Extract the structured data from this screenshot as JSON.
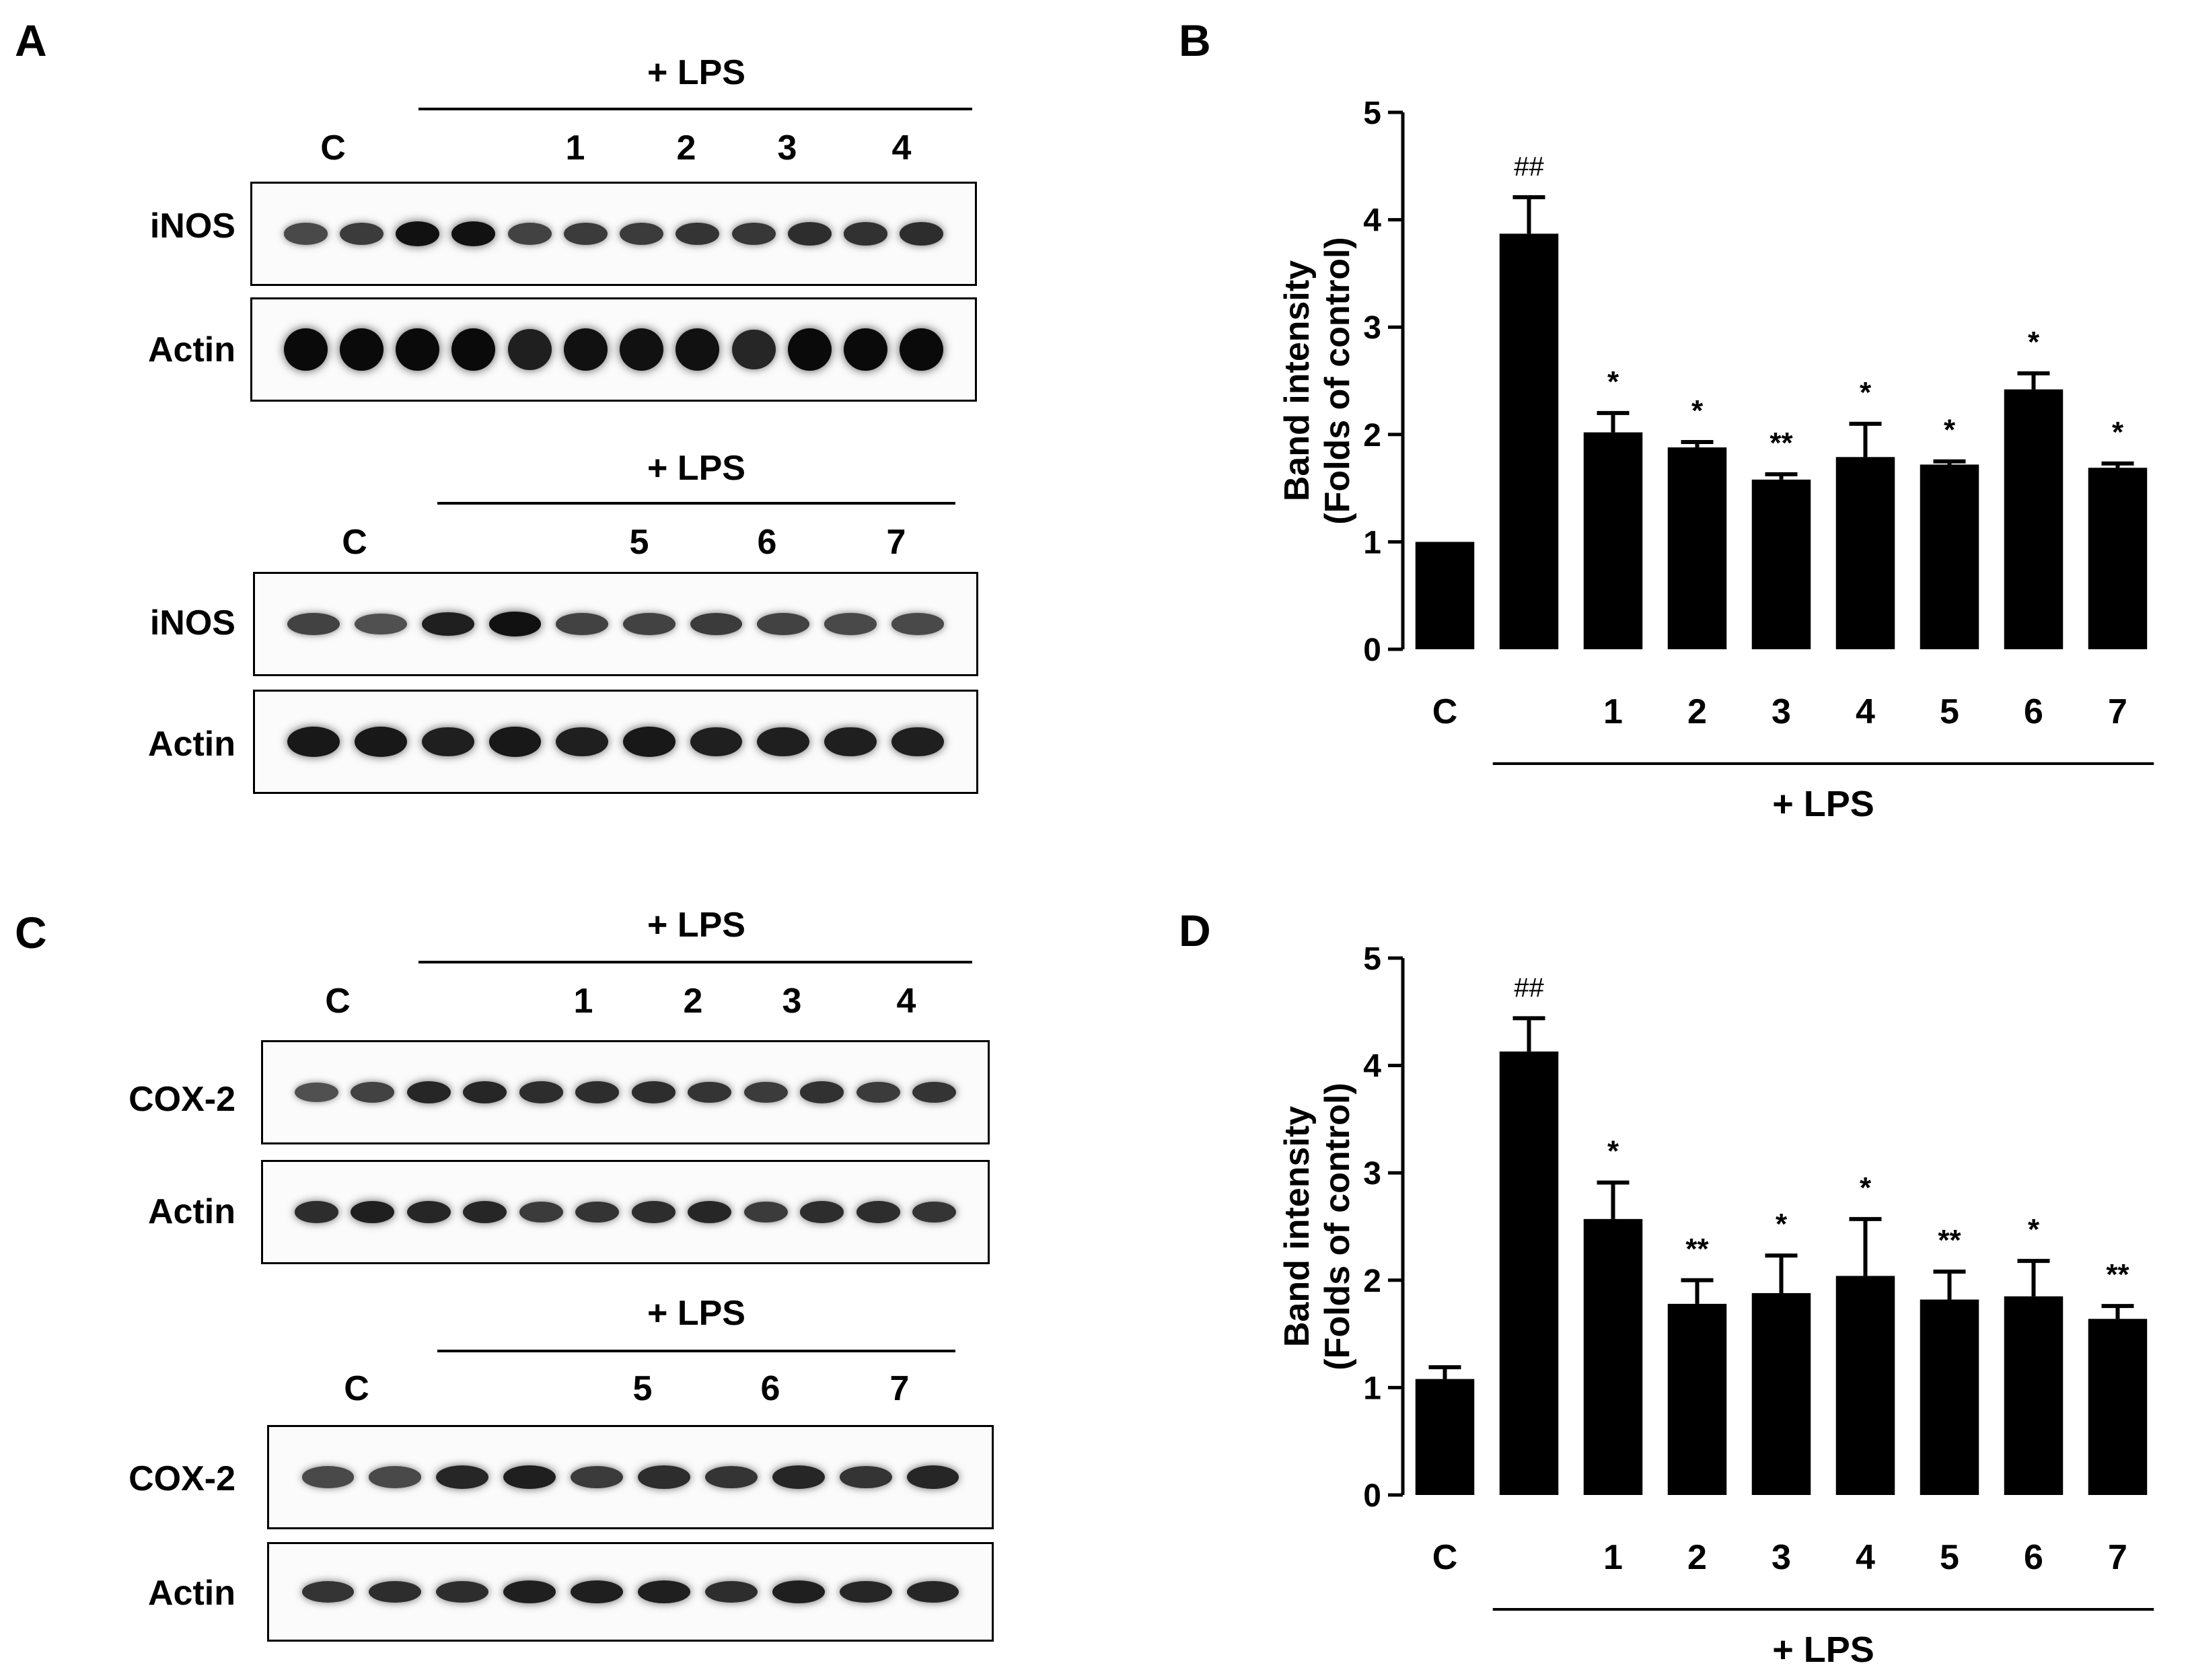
{
  "panels": {
    "A": {
      "letter": "A",
      "blots": [
        {
          "id": "A-top",
          "lps_label": "+ LPS",
          "control_label": "C",
          "lanes": [
            "1",
            "2",
            "3",
            "4"
          ],
          "rows": [
            {
              "label": "iNOS",
              "intensities": [
                0.55,
                0.65,
                0.95,
                0.95,
                0.6,
                0.65,
                0.65,
                0.7,
                0.68,
                0.75,
                0.72,
                0.75
              ]
            },
            {
              "label": "Actin",
              "intensities": [
                1,
                1,
                1,
                1,
                0.85,
                0.95,
                0.95,
                0.95,
                0.8,
                1,
                1,
                1
              ]
            }
          ]
        },
        {
          "id": "A-bottom",
          "lps_label": "+ LPS",
          "control_label": "C",
          "lanes": [
            "5",
            "6",
            "7"
          ],
          "rows": [
            {
              "label": "iNOS",
              "intensities": [
                0.6,
                0.5,
                0.85,
                0.95,
                0.6,
                0.6,
                0.65,
                0.6,
                0.55,
                0.55
              ]
            },
            {
              "label": "Actin",
              "intensities": [
                0.9,
                0.9,
                0.85,
                0.9,
                0.85,
                0.9,
                0.85,
                0.85,
                0.85,
                0.85
              ]
            }
          ]
        }
      ]
    },
    "C": {
      "letter": "C",
      "blots": [
        {
          "id": "C-top",
          "lps_label": "+ LPS",
          "control_label": "C",
          "lanes": [
            "1",
            "2",
            "3",
            "4"
          ],
          "rows": [
            {
              "label": "COX-2",
              "intensities": [
                0.5,
                0.6,
                0.8,
                0.8,
                0.75,
                0.75,
                0.75,
                0.7,
                0.65,
                0.72,
                0.65,
                0.7
              ]
            },
            {
              "label": "Actin",
              "intensities": [
                0.75,
                0.85,
                0.8,
                0.8,
                0.65,
                0.7,
                0.75,
                0.8,
                0.65,
                0.75,
                0.75,
                0.7
              ]
            }
          ]
        },
        {
          "id": "C-bottom",
          "lps_label": "+ LPS",
          "control_label": "C",
          "lanes": [
            "5",
            "6",
            "7"
          ],
          "rows": [
            {
              "label": "COX-2",
              "intensities": [
                0.55,
                0.55,
                0.8,
                0.85,
                0.65,
                0.75,
                0.7,
                0.8,
                0.7,
                0.8
              ]
            },
            {
              "label": "Actin",
              "intensities": [
                0.7,
                0.75,
                0.75,
                0.85,
                0.85,
                0.85,
                0.75,
                0.85,
                0.8,
                0.8
              ]
            }
          ]
        }
      ]
    },
    "B": {
      "letter": "B"
    },
    "D": {
      "letter": "D"
    }
  },
  "chart_data": [
    {
      "id": "B",
      "type": "bar",
      "title": "",
      "ylabel_lines": [
        "Band intensity",
        "(Folds of control)"
      ],
      "xlabel": "",
      "categories": [
        "C",
        "",
        "1",
        "2",
        "3",
        "4",
        "5",
        "6",
        "7"
      ],
      "values": [
        1.0,
        3.87,
        2.02,
        1.88,
        1.58,
        1.79,
        1.72,
        2.42,
        1.69
      ],
      "errors": [
        0.0,
        0.34,
        0.18,
        0.05,
        0.05,
        0.31,
        0.03,
        0.15,
        0.04
      ],
      "annotations": [
        "",
        "##",
        "*",
        "*",
        "**",
        "*",
        "*",
        "*",
        "*"
      ],
      "ylim": [
        0,
        5
      ],
      "yticks": [
        "0",
        "1",
        "2",
        "3",
        "4",
        "5"
      ],
      "group_label": "+ LPS",
      "bar_color": "#000000"
    },
    {
      "id": "D",
      "type": "bar",
      "title": "",
      "ylabel_lines": [
        "Band intensity",
        "(Folds of control)"
      ],
      "xlabel": "",
      "categories": [
        "C",
        "",
        "1",
        "2",
        "3",
        "4",
        "5",
        "6",
        "7"
      ],
      "values": [
        1.08,
        4.13,
        2.57,
        1.78,
        1.88,
        2.04,
        1.82,
        1.85,
        1.64
      ],
      "errors": [
        0.11,
        0.31,
        0.34,
        0.22,
        0.35,
        0.53,
        0.26,
        0.33,
        0.12
      ],
      "annotations": [
        "",
        "##",
        "*",
        "**",
        "*",
        "*",
        "**",
        "*",
        "**"
      ],
      "ylim": [
        0,
        5
      ],
      "yticks": [
        "0",
        "1",
        "2",
        "3",
        "4",
        "5"
      ],
      "group_label": "+ LPS",
      "bar_color": "#000000"
    }
  ]
}
